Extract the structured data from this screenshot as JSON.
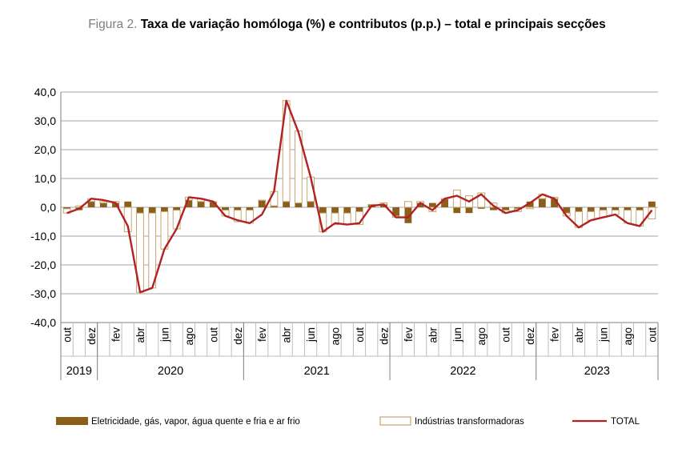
{
  "title_prefix": "Figura 2.",
  "title_main": "Taxa de variação homóloga (%) e contributos (p.p.) – total e principais secções",
  "chart_data": {
    "type": "bar",
    "title": "Figura 2. Taxa de variação homóloga (%) e contributos (p.p.) – total e principais secções",
    "ylim": [
      -40,
      40
    ],
    "yticks": [
      40,
      30,
      20,
      10,
      0,
      -10,
      -20,
      -30,
      -40
    ],
    "ytick_labels": [
      "40,0",
      "30,0",
      "20,0",
      "10,0",
      "0,0",
      "-10,0",
      "-20,0",
      "-30,0",
      "-40,0"
    ],
    "grid": true,
    "legend_position": "bottom",
    "month_labels": [
      "out",
      "dez",
      "fev",
      "abr",
      "jun",
      "ago",
      "out",
      "dez",
      "fev",
      "abr",
      "jun",
      "ago",
      "out",
      "dez",
      "fev",
      "abr",
      "jun",
      "ago",
      "out",
      "dez",
      "fev",
      "abr",
      "jun",
      "ago",
      "out"
    ],
    "year_labels": [
      "2019",
      "2020",
      "2021",
      "2022",
      "2023"
    ],
    "x": [
      "2019-10",
      "2019-11",
      "2019-12",
      "2020-01",
      "2020-02",
      "2020-03",
      "2020-04",
      "2020-05",
      "2020-06",
      "2020-07",
      "2020-08",
      "2020-09",
      "2020-10",
      "2020-11",
      "2020-12",
      "2021-01",
      "2021-02",
      "2021-03",
      "2021-04",
      "2021-05",
      "2021-06",
      "2021-07",
      "2021-08",
      "2021-09",
      "2021-10",
      "2021-11",
      "2021-12",
      "2022-01",
      "2022-02",
      "2022-03",
      "2022-04",
      "2022-05",
      "2022-06",
      "2022-07",
      "2022-08",
      "2022-09",
      "2022-10",
      "2022-11",
      "2022-12",
      "2023-01",
      "2023-02",
      "2023-03",
      "2023-04",
      "2023-05",
      "2023-06",
      "2023-07",
      "2023-08",
      "2023-09",
      "2023-10"
    ],
    "series": [
      {
        "name": "Eletricidade, gás, vapor, água quente e fria e ar frio",
        "kind": "bar",
        "color": "#8B5E1A",
        "values": [
          -0.5,
          -1.0,
          2.0,
          1.5,
          1.5,
          2.0,
          -2.0,
          -2.0,
          -1.5,
          -1.0,
          2.5,
          2.0,
          2.0,
          -1.0,
          -1.0,
          -1.0,
          2.5,
          0.5,
          2.0,
          1.5,
          2.0,
          -2.0,
          -2.0,
          -2.0,
          -1.5,
          1.0,
          1.0,
          -3.0,
          -5.5,
          1.5,
          1.5,
          3.0,
          -2.0,
          -2.0,
          -0.5,
          -1.0,
          -1.0,
          -0.5,
          2.0,
          3.0,
          3.0,
          -2.0,
          -1.5,
          -1.5,
          -1.0,
          -1.0,
          -1.0,
          -1.0,
          2.0
        ]
      },
      {
        "name": "Indústrias transformadoras",
        "kind": "bar",
        "color": "#FFFFFF",
        "values": [
          -1.5,
          0.5,
          1.0,
          0.5,
          0.5,
          -8.5,
          -27.5,
          -26.0,
          -13.0,
          -6.5,
          1.0,
          1.0,
          0.0,
          -2.0,
          -4.0,
          -4.5,
          0.0,
          5.0,
          35.0,
          25.0,
          8.5,
          -6.5,
          -4.0,
          -4.0,
          -4.5,
          0.0,
          0.5,
          -0.5,
          2.0,
          0.5,
          -1.5,
          0.0,
          6.0,
          4.0,
          5.0,
          1.5,
          -1.0,
          -1.0,
          -0.5,
          1.5,
          0.5,
          -1.0,
          -5.5,
          -3.0,
          -2.5,
          -1.5,
          -4.5,
          -5.5,
          -4.0
        ]
      },
      {
        "name": "TOTAL",
        "kind": "line",
        "color": "#B22222",
        "values": [
          -2.0,
          -0.5,
          3.0,
          2.5,
          1.5,
          -6.5,
          -29.5,
          -28.0,
          -14.5,
          -7.5,
          3.5,
          3.0,
          2.0,
          -3.0,
          -4.5,
          -5.5,
          -2.5,
          5.5,
          37.0,
          26.0,
          10.5,
          -8.5,
          -5.5,
          -6.0,
          -5.5,
          0.5,
          1.0,
          -3.5,
          -3.5,
          1.5,
          -1.0,
          3.0,
          4.0,
          2.0,
          4.5,
          0.5,
          -2.0,
          -1.0,
          1.5,
          4.5,
          3.0,
          -3.0,
          -7.0,
          -4.5,
          -3.5,
          -2.5,
          -5.5,
          -6.5,
          -1.0
        ]
      }
    ]
  }
}
